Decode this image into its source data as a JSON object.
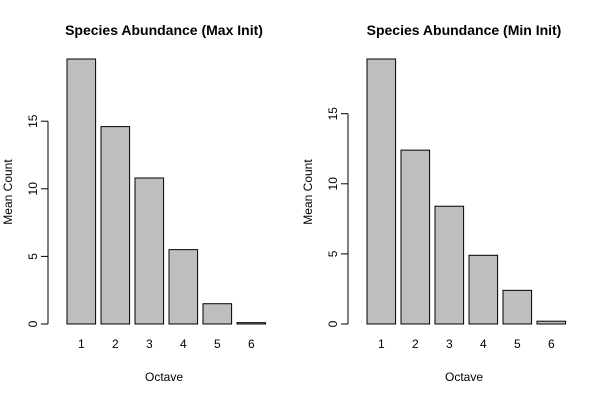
{
  "chart_data": [
    {
      "type": "bar",
      "title": "Species Abundance (Max Init)",
      "xlabel": "Octave",
      "ylabel": "Mean Count",
      "categories": [
        "1",
        "2",
        "3",
        "4",
        "5",
        "6"
      ],
      "values": [
        19.6,
        14.6,
        10.8,
        5.5,
        1.5,
        0.1
      ],
      "ylim": [
        0,
        19.6
      ],
      "yticks": [
        0,
        5,
        10,
        15
      ],
      "bar_color": "#bebebe",
      "edge_color": "#000000",
      "grid": false
    },
    {
      "type": "bar",
      "title": "Species Abundance (Min Init)",
      "xlabel": "Octave",
      "ylabel": "Mean Count",
      "categories": [
        "1",
        "2",
        "3",
        "4",
        "5",
        "6"
      ],
      "values": [
        18.9,
        12.4,
        8.4,
        4.9,
        2.4,
        0.2
      ],
      "ylim": [
        0,
        18.9
      ],
      "yticks": [
        0,
        5,
        10,
        15
      ],
      "bar_color": "#bebebe",
      "edge_color": "#000000",
      "grid": false
    }
  ]
}
